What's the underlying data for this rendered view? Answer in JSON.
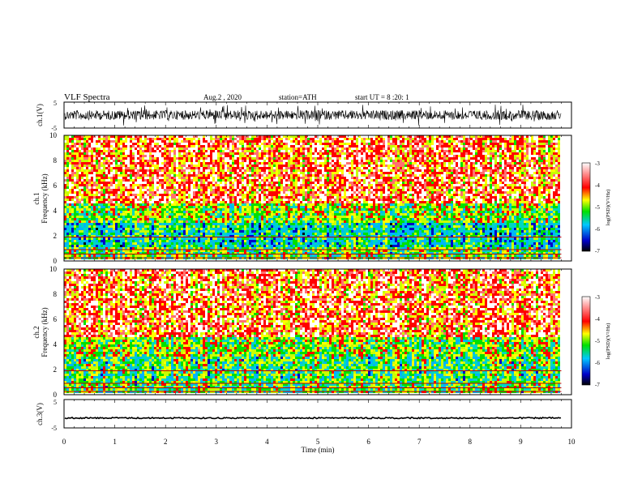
{
  "header": {
    "title": "VLF Spectra",
    "date": "Aug.2 , 2020",
    "station": "station=ATH",
    "start": "start UT = 8 :20: 1"
  },
  "panels": {
    "ch1_waveform": {
      "ylabel": "ch.1(V)",
      "ticks": [
        "5",
        "-5"
      ]
    },
    "ch1_spectrogram": {
      "ylabel_top": "ch.1",
      "ylabel_bottom": "Frequency (kHz)",
      "ticks": [
        "0",
        "2",
        "4",
        "6",
        "8",
        "10"
      ]
    },
    "ch2_spectrogram": {
      "ylabel_top": "ch.2",
      "ylabel_bottom": "Frequency (kHz)",
      "ticks": [
        "0",
        "2",
        "4",
        "6",
        "8",
        "10"
      ]
    },
    "ch3_waveform": {
      "ylabel": "ch.3(V)",
      "ticks": [
        "5",
        "-5"
      ]
    }
  },
  "colorbar": {
    "label": "log(PSD)(V²/Hz)",
    "ticks": [
      "-3",
      "-4",
      "-5",
      "-6",
      "-7"
    ]
  },
  "xaxis": {
    "label": "Time (min)",
    "ticks": [
      "0",
      "1",
      "2",
      "3",
      "4",
      "5",
      "6",
      "7",
      "8",
      "9",
      "10"
    ]
  },
  "chart_data": [
    {
      "type": "line",
      "name": "ch.1 waveform",
      "ylim": [
        -5,
        5
      ],
      "xlim": [
        0,
        10
      ],
      "x_unit": "min",
      "y_unit": "V",
      "description_values": "noisy broadband signal, amplitude roughly -4 to +4 V for t = 0 to 9.8 min"
    },
    {
      "type": "heatmap",
      "xlim": [
        0,
        10
      ],
      "ylim": [
        0,
        10
      ],
      "colorbar_range": [
        -7,
        -3
      ],
      "data_end_min": 9.8
    },
    {
      "type": "heatmap",
      "xlim": [
        0,
        10
      ],
      "ylim": [
        0,
        10
      ],
      "colorbar_range": [
        -7,
        -3
      ],
      "data_end_min": 9.8
    },
    {
      "type": "line",
      "ylim": [
        -5,
        5
      ],
      "xlim": [
        0,
        10
      ],
      "values_constant": -1.5,
      "data_end_min": 9.8
    }
  ]
}
